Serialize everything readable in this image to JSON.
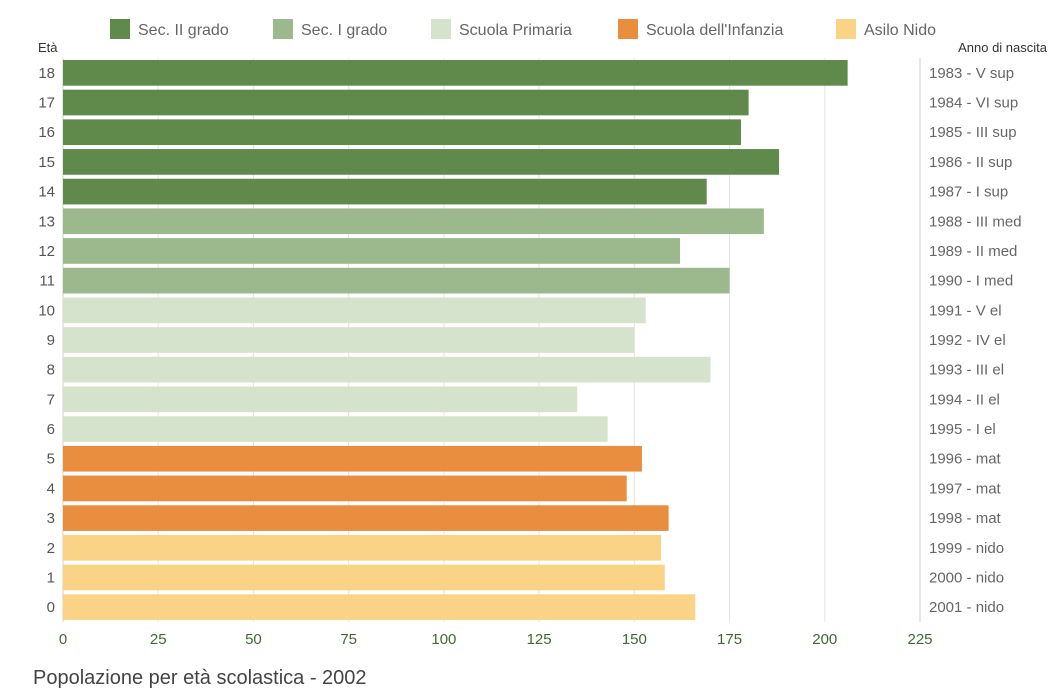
{
  "caption": "Popolazione per età scolastica - 2002",
  "chart_data": {
    "type": "bar",
    "orientation": "horizontal",
    "title": "Popolazione per età scolastica - 2002",
    "ylabel_left": "Età",
    "ylabel_right": "Anno di nascita",
    "xlim": [
      0,
      225
    ],
    "xticks": [
      "0",
      "25",
      "50",
      "75",
      "100",
      "125",
      "150",
      "175",
      "200",
      "225"
    ],
    "grid": "vertical",
    "legend_position": "top",
    "legend": [
      {
        "name": "Sec. II grado",
        "color": "#5f8a4b"
      },
      {
        "name": "Sec. I grado",
        "color": "#9bb98d"
      },
      {
        "name": "Scuola Primaria",
        "color": "#d5e3cc"
      },
      {
        "name": "Scuola dell'Infanzia",
        "color": "#e98e3e"
      },
      {
        "name": "Asilo Nido",
        "color": "#fbd387"
      }
    ],
    "bars": [
      {
        "age": "18",
        "year": "1983 - V sup",
        "value": 206,
        "group": 0
      },
      {
        "age": "17",
        "year": "1984 - VI sup",
        "value": 180,
        "group": 0
      },
      {
        "age": "16",
        "year": "1985 - III sup",
        "value": 178,
        "group": 0
      },
      {
        "age": "15",
        "year": "1986 - II sup",
        "value": 188,
        "group": 0
      },
      {
        "age": "14",
        "year": "1987 - I sup",
        "value": 169,
        "group": 0
      },
      {
        "age": "13",
        "year": "1988 - III med",
        "value": 184,
        "group": 1
      },
      {
        "age": "12",
        "year": "1989 - II med",
        "value": 162,
        "group": 1
      },
      {
        "age": "11",
        "year": "1990 - I med",
        "value": 175,
        "group": 1
      },
      {
        "age": "10",
        "year": "1991 - V el",
        "value": 153,
        "group": 2
      },
      {
        "age": "9",
        "year": "1992 - IV el",
        "value": 150,
        "group": 2
      },
      {
        "age": "8",
        "year": "1993 - III el",
        "value": 170,
        "group": 2
      },
      {
        "age": "7",
        "year": "1994 - II el",
        "value": 135,
        "group": 2
      },
      {
        "age": "6",
        "year": "1995 - I el",
        "value": 143,
        "group": 2
      },
      {
        "age": "5",
        "year": "1996 - mat",
        "value": 152,
        "group": 3
      },
      {
        "age": "4",
        "year": "1997 - mat",
        "value": 148,
        "group": 3
      },
      {
        "age": "3",
        "year": "1998 - mat",
        "value": 159,
        "group": 3
      },
      {
        "age": "2",
        "year": "1999 - nido",
        "value": 157,
        "group": 4
      },
      {
        "age": "1",
        "year": "2000 - nido",
        "value": 158,
        "group": 4
      },
      {
        "age": "0",
        "year": "2001 - nido",
        "value": 166,
        "group": 4
      }
    ]
  }
}
